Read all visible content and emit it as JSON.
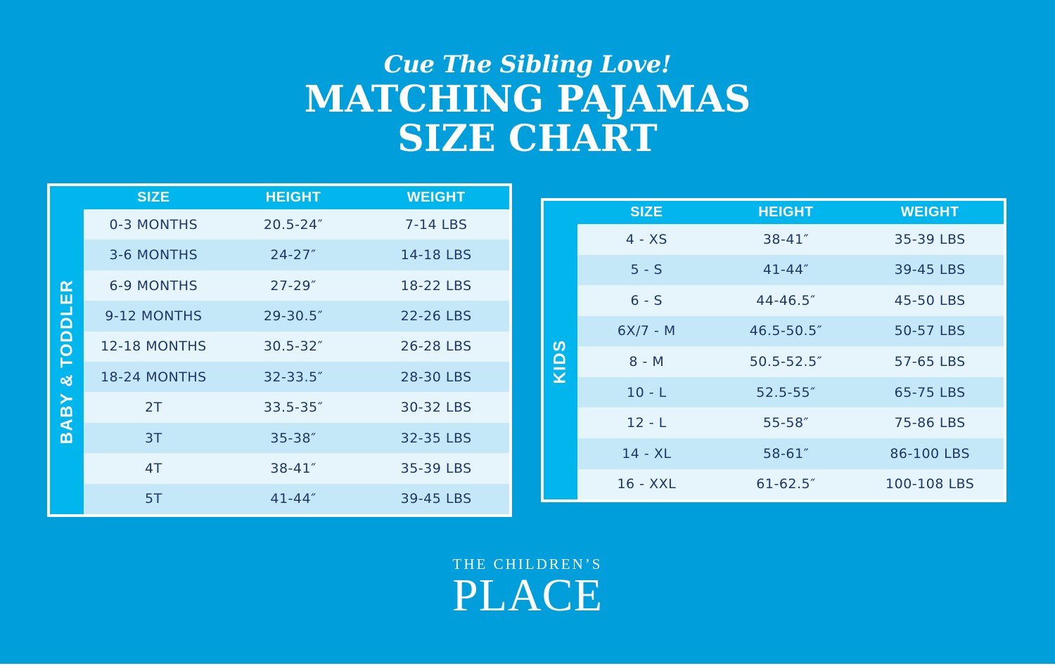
{
  "header": {
    "tagline": "Cue The Sibling Love!",
    "title_line1": "MATCHING PAJAMAS",
    "title_line2": "SIZE CHART"
  },
  "baby_chart": {
    "side_label": "BABY & TODDLER",
    "columns": [
      "SIZE",
      "HEIGHT",
      "WEIGHT"
    ],
    "rows": [
      [
        "0-3 MONTHS",
        "20.5-24″",
        "7-14 LBS"
      ],
      [
        "3-6 MONTHS",
        "24-27″",
        "14-18 LBS"
      ],
      [
        "6-9 MONTHS",
        "27-29″",
        "18-22 LBS"
      ],
      [
        "9-12 MONTHS",
        "29-30.5″",
        "22-26 LBS"
      ],
      [
        "12-18 MONTHS",
        "30.5-32″",
        "26-28 LBS"
      ],
      [
        "18-24 MONTHS",
        "32-33.5″",
        "28-30 LBS"
      ],
      [
        "2T",
        "33.5-35″",
        "30-32 LBS"
      ],
      [
        "3T",
        "35-38″",
        "32-35 LBS"
      ],
      [
        "4T",
        "38-41″",
        "35-39 LBS"
      ],
      [
        "5T",
        "41-44″",
        "39-45 LBS"
      ]
    ]
  },
  "kids_chart": {
    "side_label": "KIDS",
    "columns": [
      "SIZE",
      "HEIGHT",
      "WEIGHT"
    ],
    "rows": [
      [
        "4 - XS",
        "38-41″",
        "35-39 LBS"
      ],
      [
        "5 - S",
        "41-44″",
        "39-45 LBS"
      ],
      [
        "6 - S",
        "44-46.5″",
        "45-50 LBS"
      ],
      [
        "6X/7 - M",
        "46.5-50.5″",
        "50-57 LBS"
      ],
      [
        "8 - M",
        "50.5-52.5″",
        "57-65 LBS"
      ],
      [
        "10 - L",
        "52.5-55″",
        "65-75 LBS"
      ],
      [
        "12 - L",
        "55-58″",
        "75-86 LBS"
      ],
      [
        "14 - XL",
        "58-61″",
        "86-100 LBS"
      ],
      [
        "16 - XXL",
        "61-62.5″",
        "100-108 LBS"
      ]
    ]
  },
  "logo": {
    "top": "THE CHILDREN’S",
    "main": "PLACE"
  },
  "colors": {
    "background": "#009fdb",
    "header_band": "#00b6ec",
    "row_light": "#e6f5fc",
    "row_dark": "#c4e8f8",
    "row_text": "#1f3566"
  }
}
